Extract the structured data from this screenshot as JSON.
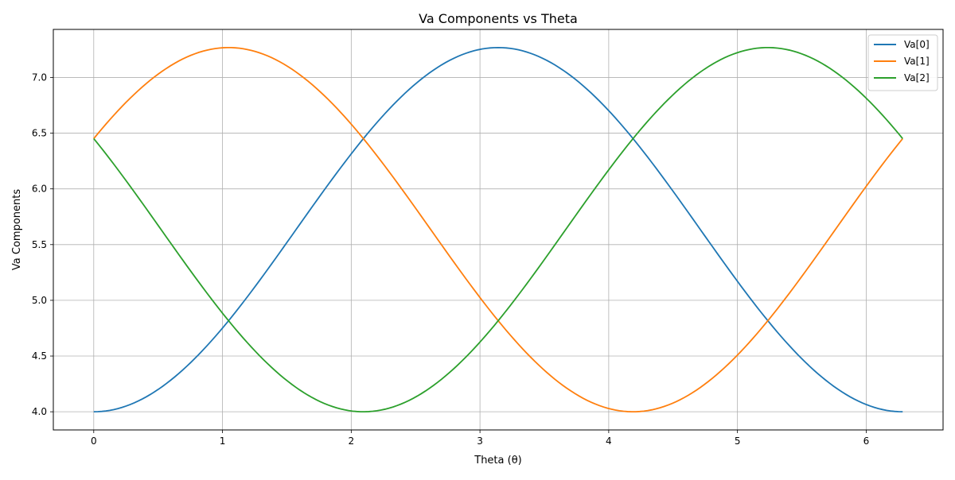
{
  "chart_data": {
    "type": "line",
    "title": "Va Components vs Theta",
    "xlabel": "Theta (θ)",
    "ylabel": "Va Components",
    "xlim": [
      -0.314,
      6.597
    ],
    "ylim": [
      3.837,
      7.431
    ],
    "xticks": [
      0,
      1,
      2,
      3,
      4,
      5,
      6
    ],
    "xtick_labels": [
      "0",
      "1",
      "2",
      "3",
      "4",
      "5",
      "6"
    ],
    "yticks": [
      4.0,
      4.5,
      5.0,
      5.5,
      6.0,
      6.5,
      7.0
    ],
    "ytick_labels": [
      "4.0",
      "4.5",
      "5.0",
      "5.5",
      "6.0",
      "6.5",
      "7.0"
    ],
    "grid": true,
    "legend_position": "top-right",
    "x_range": [
      0,
      6.283
    ],
    "series": [
      {
        "name": "Va[0]",
        "color": "#1f77b4",
        "x_start": 0,
        "x_end": 6.283,
        "form": "offset - amplitude*cos(x)",
        "offset": 5.634,
        "amplitude": 1.634
      },
      {
        "name": "Va[1]",
        "color": "#ff7f0e",
        "x_start": 0,
        "x_end": 6.283,
        "form": "offset + amplitude*sin(x + pi/6)",
        "offset": 5.634,
        "amplitude": 1.634
      },
      {
        "name": "Va[2]",
        "color": "#2ca02c",
        "x_start": 0,
        "x_end": 6.283,
        "form": "offset + amplitude*cos(x + pi/3)",
        "offset": 5.634,
        "amplitude": 1.634
      }
    ]
  }
}
